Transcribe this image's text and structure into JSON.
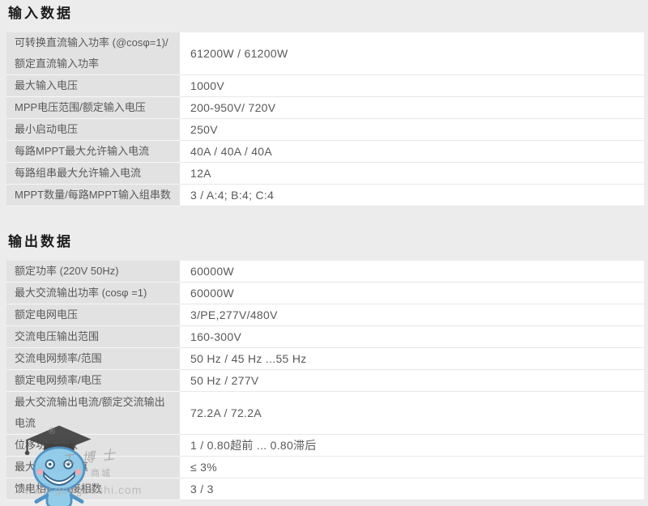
{
  "sections": [
    {
      "title": "输入数据",
      "rows": [
        {
          "label": "可转换直流输入功率 (@cosφ=1)/额定直流输入功率",
          "value": "61200W / 61200W"
        },
        {
          "label": "最大输入电压",
          "value": "1000V"
        },
        {
          "label": "MPP电压范围/额定输入电压",
          "value": "200-950V/ 720V"
        },
        {
          "label": "最小启动电压",
          "value": "250V"
        },
        {
          "label": "每路MPPT最大允许输入电流",
          "value": "40A / 40A / 40A"
        },
        {
          "label": "每路组串最大允许输入电流",
          "value": "12A"
        },
        {
          "label": "MPPT数量/每路MPPT输入组串数",
          "value": "3 / A:4; B:4; C:4"
        }
      ]
    },
    {
      "title": "输出数据",
      "rows": [
        {
          "label": "额定功率 (220V 50Hz)",
          "value": "60000W"
        },
        {
          "label": "最大交流输出功率 (cosφ =1)",
          "value": "60000W"
        },
        {
          "label": "额定电网电压",
          "value": "3/PE,277V/480V"
        },
        {
          "label": "交流电压输出范围",
          "value": "160-300V"
        },
        {
          "label": "交流电网频率/范围",
          "value": "50 Hz / 45 Hz ...55 Hz"
        },
        {
          "label": "额定电网频率/电压",
          "value": "50 Hz / 277V"
        },
        {
          "label": "最大交流输出电流/额定交流输出电流",
          "value": "72.2A / 72.2A"
        },
        {
          "label": "位移功率因数",
          "value": "1 / 0.80超前 ... 0.80滞后"
        },
        {
          "label": "最大总谐波失真",
          "value": "≤ 3%"
        },
        {
          "label": "馈电相数/连接相数",
          "value": "3 / 3"
        }
      ]
    }
  ],
  "watermark": {
    "registered_mark": "®",
    "brand": "工博士",
    "mall_label": "商城",
    "url": "www.gongboshi.com"
  },
  "colors": {
    "page_bg": "#ececec",
    "label_cell_bg": "#e2e2e2",
    "value_cell_bg": "#ffffff",
    "text": "#595959",
    "heading": "#1b1b1b",
    "watermark_blue": "#8ecbe9"
  }
}
